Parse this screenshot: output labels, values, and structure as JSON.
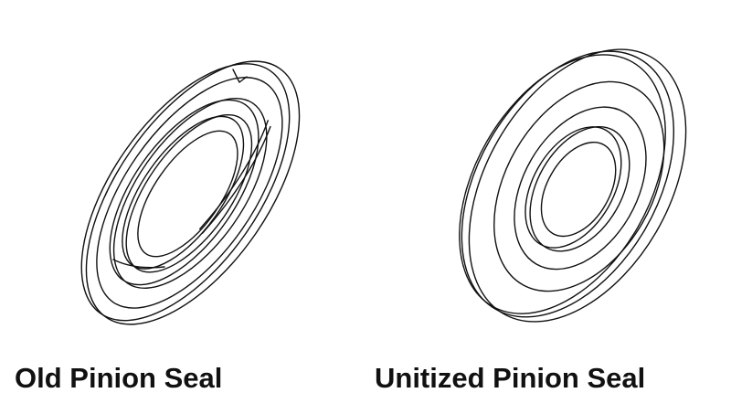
{
  "figure": {
    "left_caption": "Old Pinion Seal",
    "right_caption": "Unitized Pinion Seal",
    "line_color": "#111111",
    "background_color": "#ffffff"
  }
}
